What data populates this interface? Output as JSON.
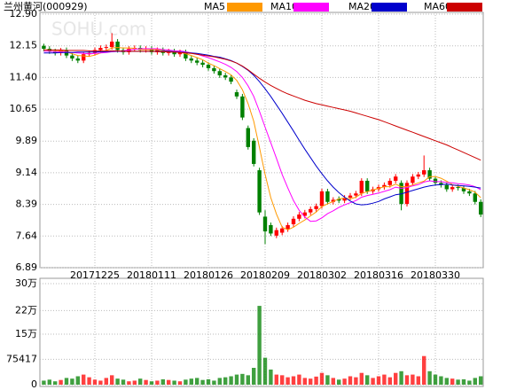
{
  "chart_data": [
    {
      "type": "candlestick",
      "title": "兰州黄河(000929)",
      "watermark": "SOHU.com",
      "categories": [
        null,
        null,
        null,
        null,
        null,
        null,
        null,
        null,
        null,
        "20171225",
        null,
        null,
        null,
        null,
        null,
        null,
        null,
        null,
        null,
        "20180111",
        null,
        null,
        null,
        null,
        null,
        null,
        null,
        null,
        null,
        "20180126",
        null,
        null,
        null,
        null,
        null,
        null,
        null,
        null,
        null,
        "20180209",
        null,
        null,
        null,
        null,
        null,
        null,
        null,
        null,
        null,
        "20180302",
        null,
        null,
        null,
        null,
        null,
        null,
        null,
        null,
        null,
        "20180316",
        null,
        null,
        null,
        null,
        null,
        null,
        null,
        null,
        null,
        "20180330",
        null,
        null,
        null,
        null,
        null,
        null,
        null,
        null
      ],
      "open": [
        12.15,
        12.08,
        12.02,
        11.98,
        12.05,
        11.92,
        11.85,
        11.8,
        11.95,
        11.98,
        12.05,
        12.1,
        12.12,
        12.25,
        12.05,
        12.0,
        12.08,
        12.1,
        12.05,
        12.08,
        12.0,
        12.05,
        11.98,
        12.02,
        11.95,
        12.0,
        11.85,
        11.8,
        11.75,
        11.7,
        11.62,
        11.55,
        11.45,
        11.4,
        11.05,
        10.95,
        10.2,
        9.9,
        9.2,
        8.1,
        7.9,
        7.65,
        7.72,
        7.8,
        7.92,
        8.05,
        8.12,
        8.2,
        8.28,
        8.35,
        8.7,
        8.45,
        8.52,
        8.48,
        8.55,
        8.6,
        8.65,
        8.95,
        8.7,
        8.75,
        8.8,
        8.85,
        8.95,
        8.9,
        8.4,
        8.9,
        9.05,
        9.1,
        9.2,
        9.0,
        8.9,
        8.85,
        8.75,
        8.8,
        8.78,
        8.7,
        8.65,
        8.45
      ],
      "high": [
        12.2,
        12.14,
        12.08,
        12.1,
        12.11,
        11.98,
        11.91,
        12.01,
        12.04,
        12.11,
        12.16,
        12.18,
        12.45,
        12.31,
        12.11,
        12.14,
        12.16,
        12.16,
        12.14,
        12.14,
        12.11,
        12.11,
        12.08,
        12.08,
        12.06,
        12.06,
        11.91,
        11.86,
        11.81,
        11.76,
        11.68,
        11.61,
        11.51,
        11.46,
        11.11,
        11.01,
        10.26,
        9.96,
        9.26,
        8.25,
        7.96,
        7.84,
        7.88,
        7.96,
        8.11,
        8.21,
        8.26,
        8.34,
        8.41,
        8.76,
        8.76,
        8.56,
        8.58,
        8.61,
        8.66,
        8.71,
        9.01,
        9.01,
        8.81,
        8.86,
        8.91,
        9.01,
        9.11,
        8.96,
        8.96,
        9.11,
        9.16,
        9.55,
        9.26,
        9.06,
        8.96,
        8.91,
        8.86,
        8.86,
        8.84,
        8.76,
        8.71,
        8.51
      ],
      "low": [
        12.02,
        11.96,
        11.92,
        11.92,
        11.86,
        11.79,
        11.74,
        11.74,
        11.89,
        11.92,
        11.99,
        12.04,
        12.06,
        11.99,
        11.94,
        11.94,
        12.02,
        11.99,
        11.99,
        11.94,
        11.94,
        11.92,
        11.92,
        11.89,
        11.89,
        11.79,
        11.74,
        11.69,
        11.64,
        11.56,
        11.49,
        11.39,
        11.34,
        11.24,
        10.89,
        10.39,
        9.69,
        9.29,
        8.14,
        7.45,
        7.64,
        7.59,
        7.66,
        7.74,
        7.86,
        7.99,
        8.06,
        8.14,
        8.22,
        8.29,
        8.39,
        8.39,
        8.42,
        8.42,
        8.49,
        8.54,
        8.59,
        8.64,
        8.64,
        8.69,
        8.74,
        8.79,
        8.89,
        8.25,
        8.34,
        8.84,
        8.99,
        9.04,
        8.94,
        8.84,
        8.79,
        8.69,
        8.69,
        8.72,
        8.64,
        8.59,
        8.39,
        8.09
      ],
      "close": [
        12.08,
        12.02,
        11.98,
        12.05,
        11.92,
        11.85,
        11.8,
        11.95,
        11.98,
        12.05,
        12.1,
        12.12,
        12.25,
        12.05,
        12.0,
        12.08,
        12.1,
        12.05,
        12.08,
        12.0,
        12.05,
        11.98,
        12.02,
        11.95,
        12.0,
        11.85,
        11.8,
        11.75,
        11.7,
        11.62,
        11.55,
        11.45,
        11.4,
        11.3,
        10.95,
        10.45,
        9.75,
        9.35,
        8.2,
        7.75,
        7.7,
        7.78,
        7.82,
        7.9,
        8.05,
        8.15,
        8.2,
        8.28,
        8.35,
        8.7,
        8.45,
        8.5,
        8.48,
        8.55,
        8.6,
        8.65,
        8.95,
        8.7,
        8.75,
        8.8,
        8.85,
        8.95,
        9.05,
        8.4,
        8.9,
        9.05,
        9.1,
        9.2,
        9.0,
        8.9,
        8.85,
        8.75,
        8.8,
        8.78,
        8.7,
        8.65,
        8.45,
        8.15
      ],
      "up_color": "#ff0000",
      "down_color": "#008000",
      "series": [
        {
          "name": "MA5",
          "color": "#ff9900",
          "values": [
            12.05,
            12.05,
            12.04,
            12.03,
            12.01,
            11.96,
            11.92,
            11.91,
            11.9,
            11.93,
            11.98,
            12.04,
            12.1,
            12.11,
            12.1,
            12.1,
            12.09,
            12.06,
            12.06,
            12.06,
            12.06,
            12.03,
            12.03,
            12.0,
            12.0,
            11.96,
            11.92,
            11.87,
            11.82,
            11.74,
            11.68,
            11.61,
            11.54,
            11.46,
            11.33,
            11.11,
            10.78,
            10.36,
            9.74,
            9.1,
            8.55,
            8.16,
            7.85,
            7.79,
            7.85,
            7.94,
            8.02,
            8.12,
            8.21,
            8.34,
            8.4,
            8.46,
            8.52,
            8.54,
            8.52,
            8.56,
            8.65,
            8.69,
            8.73,
            8.77,
            8.81,
            8.81,
            8.87,
            8.81,
            8.81,
            8.85,
            8.9,
            8.94,
            9.05,
            9.05,
            9.01,
            8.94,
            8.86,
            8.82,
            8.78,
            8.74,
            8.68,
            8.55
          ]
        },
        {
          "name": "MA10",
          "color": "#ff00ff",
          "values": [
            12.02,
            12.02,
            12.01,
            12.01,
            12.0,
            11.99,
            11.98,
            11.97,
            11.96,
            11.97,
            11.98,
            11.99,
            12.01,
            12.02,
            12.03,
            12.05,
            12.07,
            12.08,
            12.08,
            12.08,
            12.08,
            12.06,
            12.05,
            12.03,
            12.03,
            12.01,
            11.98,
            11.95,
            11.91,
            11.87,
            11.82,
            11.77,
            11.71,
            11.64,
            11.54,
            11.4,
            11.2,
            10.95,
            10.6,
            10.22,
            9.85,
            9.48,
            9.1,
            8.78,
            8.48,
            8.25,
            8.09,
            7.99,
            8.0,
            8.07,
            8.17,
            8.24,
            8.32,
            8.38,
            8.43,
            8.48,
            8.56,
            8.6,
            8.63,
            8.66,
            8.7,
            8.74,
            8.8,
            8.77,
            8.79,
            8.83,
            8.86,
            8.92,
            8.95,
            8.93,
            8.93,
            8.91,
            8.9,
            8.88,
            8.87,
            8.85,
            8.81,
            8.74
          ]
        },
        {
          "name": "MA20",
          "color": "#0000cc",
          "values": [
            11.98,
            11.98,
            11.98,
            11.99,
            11.99,
            11.99,
            12.0,
            12.0,
            12.0,
            12.0,
            12.01,
            12.01,
            12.02,
            12.02,
            12.02,
            12.02,
            12.02,
            12.02,
            12.02,
            12.02,
            12.02,
            12.02,
            12.02,
            12.01,
            12.0,
            11.99,
            11.98,
            11.97,
            11.95,
            11.93,
            11.9,
            11.88,
            11.84,
            11.8,
            11.74,
            11.66,
            11.57,
            11.45,
            11.3,
            11.13,
            10.95,
            10.75,
            10.55,
            10.34,
            10.13,
            9.91,
            9.7,
            9.5,
            9.3,
            9.12,
            8.95,
            8.8,
            8.67,
            8.56,
            8.47,
            8.4,
            8.38,
            8.39,
            8.42,
            8.46,
            8.52,
            8.57,
            8.62,
            8.64,
            8.68,
            8.72,
            8.76,
            8.8,
            8.83,
            8.85,
            8.86,
            8.87,
            8.85,
            8.84,
            8.83,
            8.82,
            8.8,
            8.78
          ]
        },
        {
          "name": "MA60",
          "color": "#cc0000",
          "values": [
            12.05,
            12.05,
            12.05,
            12.05,
            12.04,
            12.04,
            12.04,
            12.04,
            12.03,
            12.03,
            12.03,
            12.03,
            12.03,
            12.03,
            12.02,
            12.02,
            12.02,
            12.02,
            12.02,
            12.02,
            12.01,
            12.01,
            12.0,
            12.0,
            11.99,
            11.98,
            11.97,
            11.95,
            11.93,
            11.91,
            11.89,
            11.86,
            11.83,
            11.79,
            11.74,
            11.67,
            11.58,
            11.48,
            11.38,
            11.29,
            11.21,
            11.14,
            11.07,
            11.01,
            10.96,
            10.91,
            10.86,
            10.82,
            10.78,
            10.75,
            10.72,
            10.69,
            10.66,
            10.63,
            10.6,
            10.56,
            10.52,
            10.48,
            10.44,
            10.4,
            10.35,
            10.3,
            10.25,
            10.2,
            10.15,
            10.1,
            10.05,
            10.0,
            9.95,
            9.9,
            9.85,
            9.8,
            9.74,
            9.68,
            9.62,
            9.56,
            9.5,
            9.44
          ]
        }
      ],
      "ylim": [
        6.89,
        12.9
      ],
      "yticks": [
        {
          "value": 12.9,
          "label": "12.90"
        },
        12.15,
        {
          "value": 11.4,
          "label": "11.40"
        },
        10.65,
        9.89,
        9.14,
        8.39,
        7.64,
        6.89
      ],
      "grid": true
    },
    {
      "type": "bar",
      "values": [
        12000,
        15000,
        10000,
        14000,
        20000,
        18000,
        25000,
        30000,
        22000,
        15000,
        12000,
        20000,
        28000,
        18000,
        15000,
        10000,
        12000,
        18000,
        14000,
        10000,
        12000,
        16000,
        14000,
        12000,
        10000,
        15000,
        18000,
        20000,
        14000,
        16000,
        12000,
        20000,
        22000,
        25000,
        30000,
        32000,
        28000,
        50000,
        234000,
        80000,
        45000,
        30000,
        28000,
        22000,
        25000,
        30000,
        20000,
        18000,
        24000,
        35000,
        28000,
        20000,
        15000,
        18000,
        25000,
        22000,
        35000,
        28000,
        20000,
        25000,
        30000,
        22000,
        35000,
        40000,
        28000,
        30000,
        25000,
        85000,
        40000,
        30000,
        25000,
        20000,
        18000,
        15000,
        16000,
        12000,
        20000,
        25000
      ],
      "ylim": [
        0,
        300000
      ],
      "yticks": [
        {
          "value": 300000,
          "label": "30万"
        },
        {
          "value": 220000,
          "label": "22万"
        },
        {
          "value": 150000,
          "label": "15万"
        },
        75417,
        0
      ],
      "grid": true
    }
  ]
}
